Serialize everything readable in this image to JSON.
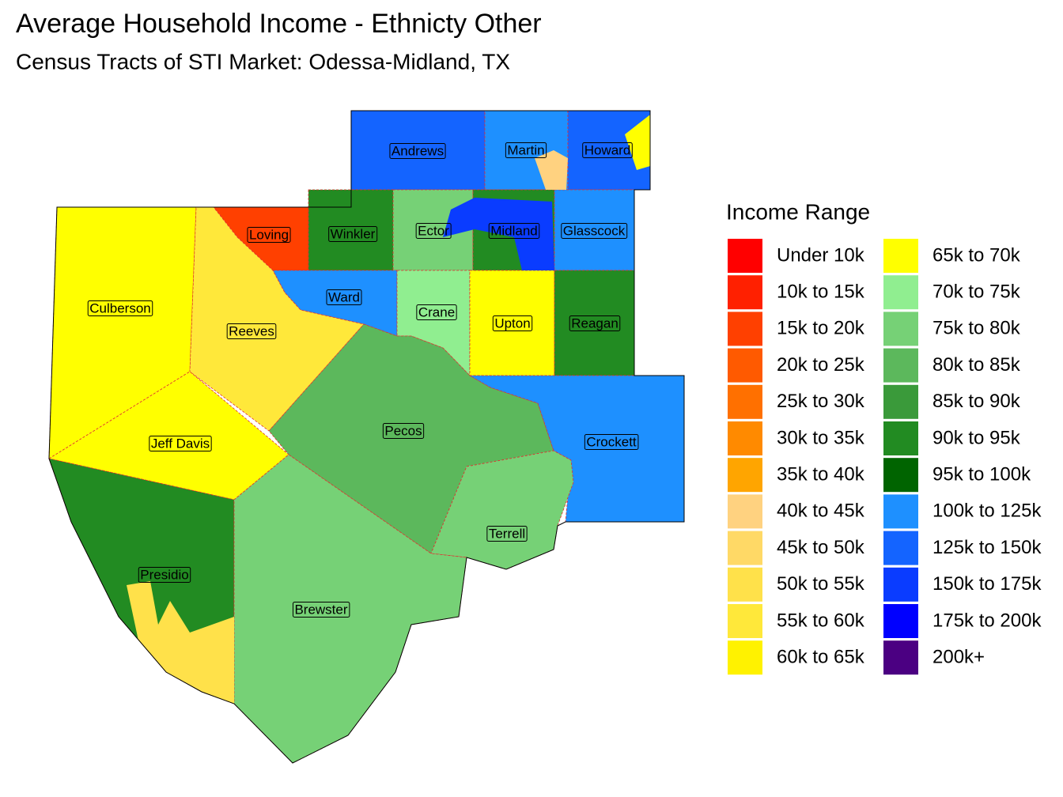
{
  "title": "Average Household Income - Ethnicty Other",
  "subtitle": "Census Tracts of STI Market: Odessa-Midland, TX",
  "legend": {
    "title": "Income Range",
    "items": [
      {
        "label": "Under 10k",
        "color": "#ff0000"
      },
      {
        "label": "10k to 15k",
        "color": "#ff2000"
      },
      {
        "label": "15k to 20k",
        "color": "#ff4000"
      },
      {
        "label": "20k to 25k",
        "color": "#ff5a00"
      },
      {
        "label": "25k to 30k",
        "color": "#ff7000"
      },
      {
        "label": "30k to 35k",
        "color": "#ff8a00"
      },
      {
        "label": "35k to 40k",
        "color": "#ffa500"
      },
      {
        "label": "40k to 45k",
        "color": "#ffd280"
      },
      {
        "label": "45k to 50k",
        "color": "#ffd966"
      },
      {
        "label": "50k to 55k",
        "color": "#ffe14a"
      },
      {
        "label": "55k to 60k",
        "color": "#ffe83a"
      },
      {
        "label": "60k to 65k",
        "color": "#fff200"
      },
      {
        "label": "65k to 70k",
        "color": "#ffff00"
      },
      {
        "label": "70k to 75k",
        "color": "#90ee90"
      },
      {
        "label": "75k to 80k",
        "color": "#76d176"
      },
      {
        "label": "80k to 85k",
        "color": "#5cb85c"
      },
      {
        "label": "85k to 90k",
        "color": "#3a9a3a"
      },
      {
        "label": "90k to 95k",
        "color": "#228b22"
      },
      {
        "label": "95k to 100k",
        "color": "#006400"
      },
      {
        "label": "100k to 125k",
        "color": "#1e90ff"
      },
      {
        "label": "125k to 150k",
        "color": "#1464ff"
      },
      {
        "label": "150k to 175k",
        "color": "#0a3cff"
      },
      {
        "label": "175k to 200k",
        "color": "#0000ff"
      },
      {
        "label": "200k+",
        "color": "#4b0082"
      }
    ]
  },
  "counties": [
    {
      "name": "Andrews",
      "color": "#1464ff"
    },
    {
      "name": "Martin",
      "color": "#1e90ff"
    },
    {
      "name": "Howard",
      "color": "#1464ff"
    },
    {
      "name": "Loving",
      "color": "#ff4000"
    },
    {
      "name": "Winkler",
      "color": "#228b22"
    },
    {
      "name": "Ector",
      "color": "#76d176"
    },
    {
      "name": "Midland",
      "color": "#228b22"
    },
    {
      "name": "Glasscock",
      "color": "#1e90ff"
    },
    {
      "name": "Ward",
      "color": "#1e90ff"
    },
    {
      "name": "Crane",
      "color": "#90ee90"
    },
    {
      "name": "Upton",
      "color": "#ffff00"
    },
    {
      "name": "Reagan",
      "color": "#228b22"
    },
    {
      "name": "Culberson",
      "color": "#ffff00"
    },
    {
      "name": "Reeves",
      "color": "#ffe83a"
    },
    {
      "name": "Jeff Davis",
      "color": "#ffff00"
    },
    {
      "name": "Pecos",
      "color": "#5cb85c"
    },
    {
      "name": "Crockett",
      "color": "#1e90ff"
    },
    {
      "name": "Terrell",
      "color": "#76d176"
    },
    {
      "name": "Presidio",
      "color": "#228b22"
    },
    {
      "name": "Brewster",
      "color": "#76d176"
    }
  ]
}
